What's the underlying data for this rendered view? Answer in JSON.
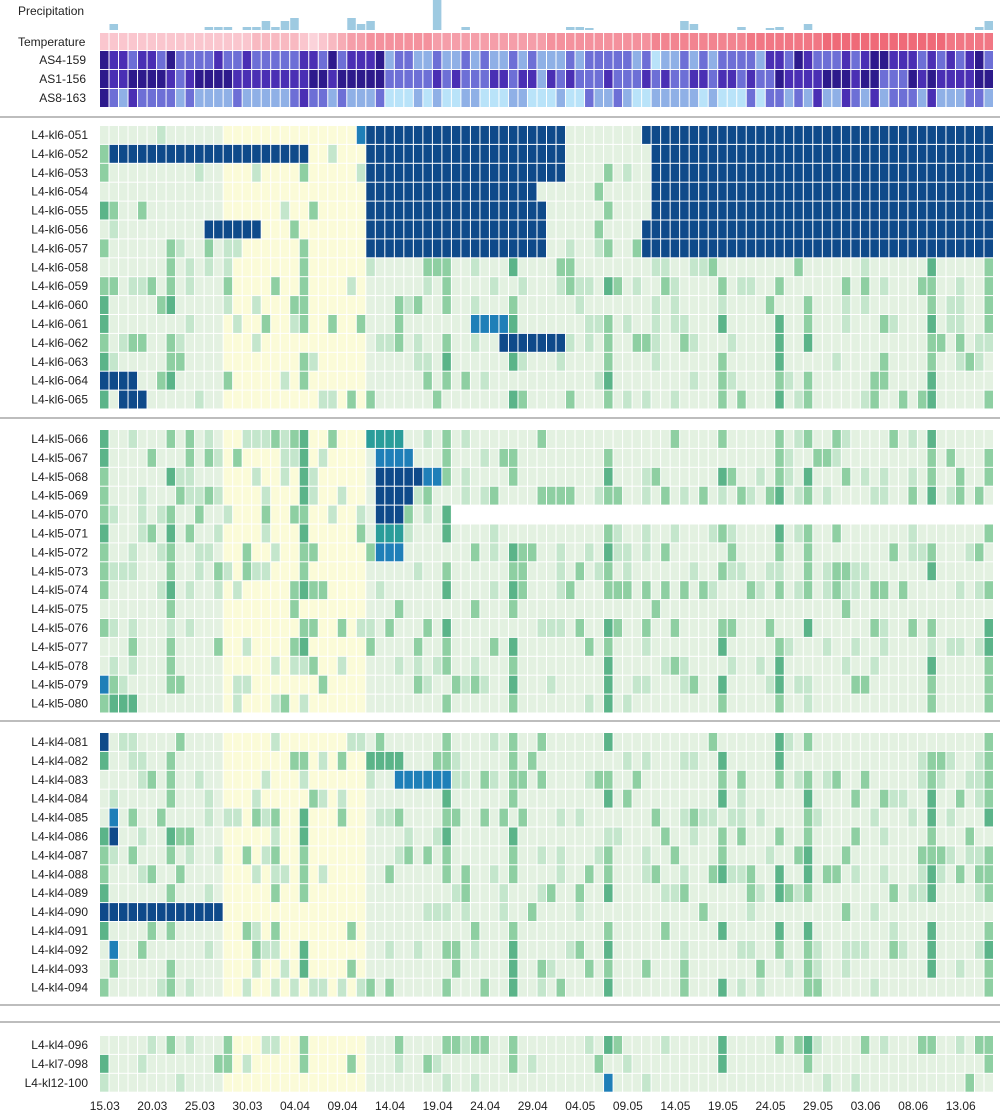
{
  "chart_data": {
    "type": "heatmap",
    "n_days": 94,
    "x_tick_labels": [
      "15.03",
      "20.03",
      "25.03",
      "30.03",
      "04.04",
      "09.04",
      "14.04",
      "19.04",
      "24.04",
      "29.04",
      "04.05",
      "09.05",
      "14.05",
      "19.05",
      "24.05",
      "29.05",
      "03.06",
      "08.06",
      "13.06"
    ],
    "x_tick_start_index": 0,
    "x_tick_step_days": 5,
    "colors": {
      "precip": "#9ecae1",
      "temp_low": "#fde0e6",
      "temp_high": "#ef6a78",
      "as_scale": [
        "#b9e3f9",
        "#8fb0e6",
        "#6d6fd6",
        "#4a2fb4",
        "#2d1a8c"
      ],
      "level_scale": [
        "#fbfbd8",
        "#e3f1e1",
        "#c4e6cc",
        "#8ecfa2",
        "#5bb489",
        "#2a9d9a",
        "#1f7fb8",
        "#0f4a8a"
      ],
      "separator": "#bdbdbd"
    },
    "top": {
      "precipitation_label": "Precipitation",
      "temperature_label": "Temperature",
      "as_rows": [
        "AS4-159",
        "AS1-156",
        "AS8-163"
      ]
    },
    "groups": [
      {
        "rows": [
          {
            "label": "L4-kl6-051",
            "base": 1,
            "blocks": [
              [
                27,
                28,
                6
              ],
              [
                28,
                49,
                7
              ],
              [
                57,
                94,
                7
              ]
            ],
            "noise": 0.05
          },
          {
            "label": "L4-kl6-052",
            "base": 1,
            "blocks": [
              [
                1,
                22,
                7
              ],
              [
                28,
                49,
                7
              ],
              [
                58,
                94,
                7
              ]
            ],
            "noise": 0.05
          },
          {
            "label": "L4-kl6-053",
            "base": 1,
            "blocks": [
              [
                28,
                49,
                7
              ],
              [
                58,
                94,
                7
              ]
            ],
            "noise": 0.12
          },
          {
            "label": "L4-kl6-054",
            "base": 1,
            "blocks": [
              [
                28,
                46,
                7
              ],
              [
                58,
                94,
                7
              ]
            ],
            "noise": 0.08
          },
          {
            "label": "L4-kl6-055",
            "base": 1,
            "blocks": [
              [
                28,
                47,
                7
              ],
              [
                58,
                94,
                7
              ]
            ],
            "noise": 0.12
          },
          {
            "label": "L4-kl6-056",
            "base": 1,
            "blocks": [
              [
                11,
                17,
                7
              ],
              [
                28,
                47,
                7
              ],
              [
                57,
                94,
                7
              ]
            ],
            "noise": 0.1
          },
          {
            "label": "L4-kl6-057",
            "base": 1,
            "blocks": [
              [
                28,
                47,
                7
              ],
              [
                57,
                94,
                7
              ]
            ],
            "noise": 0.15
          },
          {
            "label": "L4-kl6-058",
            "base": 1,
            "blocks": [],
            "noise": 0.2
          },
          {
            "label": "L4-kl6-059",
            "base": 1,
            "blocks": [],
            "noise": 0.28
          },
          {
            "label": "L4-kl6-060",
            "base": 1,
            "blocks": [],
            "noise": 0.22
          },
          {
            "label": "L4-kl6-061",
            "base": 1,
            "blocks": [
              [
                39,
                43,
                6
              ]
            ],
            "noise": 0.22
          },
          {
            "label": "L4-kl6-062",
            "base": 1,
            "blocks": [
              [
                42,
                49,
                7
              ]
            ],
            "noise": 0.22
          },
          {
            "label": "L4-kl6-063",
            "base": 1,
            "blocks": [],
            "noise": 0.14
          },
          {
            "label": "L4-kl6-064",
            "base": 1,
            "blocks": [
              [
                0,
                4,
                7
              ]
            ],
            "noise": 0.15
          },
          {
            "label": "L4-kl6-065",
            "base": 1,
            "blocks": [
              [
                2,
                5,
                7
              ]
            ],
            "noise": 0.2
          }
        ]
      },
      {
        "rows": [
          {
            "label": "L4-kl5-066",
            "base": 1,
            "blocks": [
              [
                28,
                32,
                5
              ]
            ],
            "noise": 0.2
          },
          {
            "label": "L4-kl5-067",
            "base": 1,
            "blocks": [
              [
                29,
                33,
                6
              ]
            ],
            "noise": 0.25
          },
          {
            "label": "L4-kl5-068",
            "base": 1,
            "blocks": [
              [
                29,
                34,
                7
              ],
              [
                34,
                36,
                6
              ]
            ],
            "noise": 0.28
          },
          {
            "label": "L4-kl5-069",
            "base": 1,
            "blocks": [
              [
                29,
                33,
                7
              ]
            ],
            "noise": 0.3
          },
          {
            "label": "L4-kl5-070",
            "base": 1,
            "blocks": [
              [
                29,
                32,
                7
              ]
            ],
            "noise": 0.25,
            "blank_from": 37
          },
          {
            "label": "L4-kl5-071",
            "base": 1,
            "blocks": [
              [
                29,
                32,
                5
              ]
            ],
            "noise": 0.25
          },
          {
            "label": "L4-kl5-072",
            "base": 1,
            "blocks": [
              [
                29,
                32,
                6
              ]
            ],
            "noise": 0.28
          },
          {
            "label": "L4-kl5-073",
            "base": 1,
            "blocks": [],
            "noise": 0.28
          },
          {
            "label": "L4-kl5-074",
            "base": 1,
            "blocks": [],
            "noise": 0.3
          },
          {
            "label": "L4-kl5-075",
            "base": 1,
            "blocks": [],
            "noise": 0.05
          },
          {
            "label": "L4-kl5-076",
            "base": 1,
            "blocks": [],
            "noise": 0.22
          },
          {
            "label": "L4-kl5-077",
            "base": 1,
            "blocks": [],
            "noise": 0.16
          },
          {
            "label": "L4-kl5-078",
            "base": 1,
            "blocks": [],
            "noise": 0.22
          },
          {
            "label": "L4-kl5-079",
            "base": 1,
            "blocks": [
              [
                0,
                1,
                6
              ]
            ],
            "noise": 0.22
          },
          {
            "label": "L4-kl5-080",
            "base": 1,
            "blocks": [
              [
                1,
                4,
                4
              ]
            ],
            "noise": 0.18
          }
        ]
      },
      {
        "rows": [
          {
            "label": "L4-kl4-081",
            "base": 1,
            "blocks": [
              [
                0,
                1,
                7
              ]
            ],
            "noise": 0.2
          },
          {
            "label": "L4-kl4-082",
            "base": 1,
            "blocks": [
              [
                28,
                32,
                4
              ]
            ],
            "noise": 0.22
          },
          {
            "label": "L4-kl4-083",
            "base": 1,
            "blocks": [
              [
                31,
                37,
                6
              ]
            ],
            "noise": 0.3
          },
          {
            "label": "L4-kl4-084",
            "base": 1,
            "blocks": [],
            "noise": 0.2
          },
          {
            "label": "L4-kl4-085",
            "base": 1,
            "blocks": [
              [
                1,
                2,
                6
              ]
            ],
            "noise": 0.25
          },
          {
            "label": "L4-kl4-086",
            "base": 1,
            "blocks": [
              [
                1,
                2,
                7
              ]
            ],
            "noise": 0.25
          },
          {
            "label": "L4-kl4-087",
            "base": 1,
            "blocks": [],
            "noise": 0.25
          },
          {
            "label": "L4-kl4-088",
            "base": 1,
            "blocks": [],
            "noise": 0.3
          },
          {
            "label": "L4-kl4-089",
            "base": 1,
            "blocks": [],
            "noise": 0.2
          },
          {
            "label": "L4-kl4-090",
            "base": 1,
            "blocks": [
              [
                0,
                13,
                7
              ]
            ],
            "noise": 0.1
          },
          {
            "label": "L4-kl4-091",
            "base": 1,
            "blocks": [],
            "noise": 0.15
          },
          {
            "label": "L4-kl4-092",
            "base": 1,
            "blocks": [
              [
                1,
                2,
                6
              ]
            ],
            "noise": 0.25
          },
          {
            "label": "L4-kl4-093",
            "base": 1,
            "blocks": [],
            "noise": 0.18
          },
          {
            "label": "L4-kl4-094",
            "base": 1,
            "blocks": [],
            "noise": 0.22
          }
        ]
      },
      {
        "rows": [
          {
            "label": "L4-kl4-096",
            "base": 1,
            "blocks": [],
            "noise": 0.2
          },
          {
            "label": "L4-kl7-098",
            "base": 1,
            "blocks": [],
            "noise": 0.14
          },
          {
            "label": "L4-kl12-100",
            "base": 1,
            "blocks": [
              [
                53,
                54,
                6
              ]
            ],
            "noise": 0.08
          }
        ]
      }
    ],
    "common_hot_columns": [
      0,
      7,
      21,
      36,
      43,
      53,
      65,
      71,
      74,
      87,
      93
    ],
    "precipitation": [
      0,
      0.2,
      0,
      0,
      0,
      0,
      0,
      0,
      0,
      0,
      0,
      0.1,
      0.1,
      0.1,
      0,
      0.1,
      0.1,
      0.3,
      0.1,
      0.3,
      0.4,
      0,
      0,
      0,
      0,
      0,
      0.4,
      0.2,
      0.3,
      0,
      0,
      0,
      0,
      0,
      0,
      1,
      0,
      0,
      0.1,
      0,
      0,
      0,
      0,
      0,
      0,
      0,
      0,
      0,
      0,
      0.1,
      0.1,
      0.05,
      0,
      0,
      0,
      0,
      0,
      0,
      0,
      0,
      0,
      0.3,
      0.2,
      0,
      0,
      0,
      0,
      0.1,
      0,
      0,
      0.05,
      0.1,
      0,
      0,
      0.2,
      0,
      0,
      0,
      0,
      0,
      0,
      0,
      0,
      0,
      0,
      0,
      0,
      0,
      0,
      0,
      0,
      0,
      0.1,
      0.3
    ],
    "temperature": [
      2,
      2,
      2,
      2,
      2,
      2,
      2,
      2,
      2,
      2,
      2,
      2,
      2,
      2,
      2,
      2,
      3,
      3,
      3,
      3,
      3,
      2,
      1,
      2,
      3,
      4,
      5,
      5,
      6,
      6,
      6,
      6,
      6,
      6,
      6,
      5,
      5,
      5,
      5,
      5,
      5,
      5,
      5,
      5,
      5,
      5,
      5,
      6,
      6,
      6,
      6,
      6,
      6,
      6,
      6,
      6,
      6,
      6,
      7,
      7,
      7,
      7,
      7,
      7,
      7,
      7,
      7,
      7,
      8,
      8,
      8,
      8,
      8,
      8,
      8,
      8,
      9,
      9,
      9,
      9,
      9,
      9,
      9,
      9,
      9,
      9,
      9,
      9,
      9,
      8,
      8,
      8,
      8,
      8
    ],
    "as_rows_values": {
      "AS4-159": "mid",
      "AS1-156": "high",
      "AS8-163": "low"
    }
  }
}
